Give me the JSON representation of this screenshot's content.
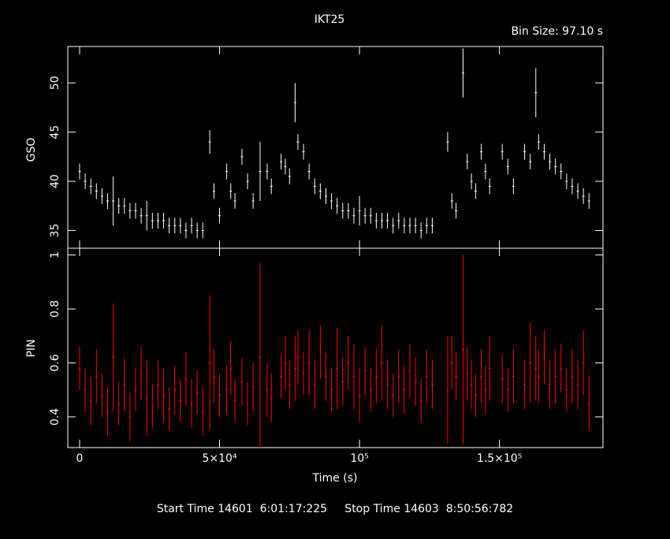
{
  "chart_data": [
    {
      "type": "scatter",
      "title": "IKT25",
      "subtitle": "Bin Size: 97.10 s",
      "ylabel": "GSO",
      "color": "#ffffff",
      "x": [
        0,
        2000,
        4000,
        6000,
        8000,
        10000,
        12000,
        14000,
        16000,
        18000,
        20000,
        22000,
        24000,
        26000,
        28000,
        30000,
        32000,
        34000,
        36000,
        38000,
        40000,
        42000,
        44000,
        46500,
        48000,
        50000,
        52500,
        54000,
        55500,
        58000,
        60000,
        62000,
        64500,
        67000,
        68500,
        72000,
        73500,
        75000,
        77000,
        78000,
        80000,
        82000,
        84000,
        86000,
        88000,
        90000,
        92000,
        94000,
        96000,
        98000,
        100000,
        102000,
        104000,
        106000,
        108000,
        110000,
        112000,
        114000,
        116000,
        118000,
        120000,
        122000,
        124000,
        126000,
        131500,
        133000,
        134500,
        137000,
        138500,
        140000,
        141500,
        143500,
        145000,
        146500,
        151000,
        153000,
        155000,
        159000,
        161000,
        163000,
        164000,
        166000,
        168000,
        170000,
        172000,
        174000,
        176000,
        178000,
        180000,
        182000
      ],
      "values": [
        41,
        40,
        39.5,
        39,
        38.5,
        38,
        38,
        37.5,
        37.5,
        37,
        37,
        36.5,
        36.5,
        36,
        36,
        36,
        35.5,
        35.5,
        35.5,
        35,
        35.5,
        35,
        35,
        44,
        39,
        36.5,
        41,
        39,
        38,
        42.5,
        40,
        38,
        41,
        41,
        39.5,
        42,
        41.5,
        40.5,
        48,
        44,
        43,
        41,
        39.5,
        39,
        38.5,
        38,
        37.5,
        37,
        37,
        36.5,
        37,
        36.5,
        36.5,
        36,
        36,
        36,
        35.5,
        36,
        35.5,
        35.5,
        35.5,
        35,
        35.5,
        35.5,
        44,
        38,
        37,
        51,
        42,
        40,
        39,
        43,
        41,
        39.5,
        43,
        41.5,
        39.5,
        43,
        42,
        49,
        44,
        43,
        42,
        41.5,
        41,
        40,
        39.5,
        39,
        38.5,
        38
      ],
      "errors": [
        0.8,
        0.8,
        0.8,
        0.8,
        0.8,
        0.8,
        2.5,
        0.8,
        0.8,
        0.8,
        0.8,
        0.8,
        1.5,
        0.8,
        0.8,
        0.8,
        0.8,
        0.8,
        0.8,
        0.8,
        0.8,
        0.8,
        0.8,
        1.2,
        0.8,
        0.8,
        0.8,
        0.8,
        0.8,
        0.8,
        0.8,
        0.8,
        3,
        0.8,
        0.8,
        0.8,
        0.8,
        0.8,
        2,
        0.8,
        0.8,
        0.8,
        0.8,
        0.8,
        0.8,
        0.8,
        0.8,
        0.8,
        0.8,
        0.8,
        1.5,
        0.8,
        0.8,
        0.8,
        0.8,
        0.8,
        0.8,
        0.8,
        0.8,
        0.8,
        0.8,
        0.8,
        0.8,
        0.8,
        1,
        0.8,
        0.8,
        2.5,
        0.8,
        0.8,
        0.8,
        0.8,
        0.8,
        0.8,
        0.8,
        0.8,
        0.8,
        0.8,
        0.8,
        2.5,
        0.8,
        0.8,
        0.8,
        0.8,
        0.8,
        0.8,
        0.8,
        0.8,
        0.8,
        0.8
      ],
      "xlim": [
        -4225,
        187000
      ],
      "ylim": [
        33.2,
        53.7
      ],
      "yticks": [
        35,
        40,
        45,
        50
      ]
    },
    {
      "type": "scatter",
      "ylabel": "PIN",
      "xlabel": "Time (s)",
      "color": "#ff0000",
      "annotation": "Start Time 14601  6:01:17:225     Stop Time 14603  8:50:56:782",
      "x": [
        0,
        2000,
        4000,
        6000,
        8000,
        10000,
        12000,
        14000,
        16000,
        18000,
        20000,
        22000,
        24000,
        26000,
        28000,
        30000,
        32000,
        34000,
        36000,
        38000,
        40000,
        42000,
        44000,
        46500,
        48000,
        50000,
        52500,
        54000,
        55500,
        58000,
        60000,
        62000,
        64500,
        67000,
        68500,
        72000,
        73500,
        75000,
        77000,
        78000,
        80000,
        82000,
        84000,
        86000,
        88000,
        90000,
        92000,
        94000,
        96000,
        98000,
        100000,
        102000,
        104000,
        106000,
        108000,
        110000,
        112000,
        114000,
        116000,
        118000,
        120000,
        122000,
        124000,
        126000,
        131500,
        133000,
        134500,
        137000,
        138500,
        140000,
        141500,
        143500,
        145000,
        146500,
        151000,
        153000,
        155000,
        159000,
        161000,
        163000,
        164000,
        166000,
        168000,
        170000,
        172000,
        174000,
        176000,
        178000,
        180000,
        182000
      ],
      "values": [
        0.58,
        0.5,
        0.46,
        0.55,
        0.48,
        0.42,
        0.62,
        0.45,
        0.52,
        0.4,
        0.5,
        0.56,
        0.47,
        0.44,
        0.52,
        0.48,
        0.43,
        0.5,
        0.46,
        0.54,
        0.45,
        0.49,
        0.42,
        0.6,
        0.55,
        0.48,
        0.5,
        0.58,
        0.46,
        0.53,
        0.45,
        0.51,
        0.62,
        0.5,
        0.47,
        0.55,
        0.6,
        0.52,
        0.58,
        0.62,
        0.56,
        0.6,
        0.52,
        0.64,
        0.55,
        0.5,
        0.58,
        0.53,
        0.6,
        0.55,
        0.48,
        0.57,
        0.5,
        0.55,
        0.6,
        0.52,
        0.48,
        0.55,
        0.5,
        0.57,
        0.53,
        0.46,
        0.55,
        0.52,
        0.5,
        0.6,
        0.55,
        0.65,
        0.56,
        0.52,
        0.48,
        0.55,
        0.5,
        0.58,
        0.54,
        0.5,
        0.55,
        0.52,
        0.6,
        0.58,
        0.55,
        0.62,
        0.52,
        0.55,
        0.58,
        0.5,
        0.55,
        0.52,
        0.6,
        0.45
      ],
      "errors": [
        0.08,
        0.08,
        0.09,
        0.1,
        0.08,
        0.09,
        0.2,
        0.08,
        0.1,
        0.09,
        0.08,
        0.1,
        0.14,
        0.08,
        0.09,
        0.1,
        0.08,
        0.09,
        0.08,
        0.1,
        0.09,
        0.08,
        0.09,
        0.25,
        0.1,
        0.08,
        0.09,
        0.1,
        0.08,
        0.09,
        0.08,
        0.09,
        0.35,
        0.1,
        0.09,
        0.08,
        0.1,
        0.09,
        0.12,
        0.1,
        0.08,
        0.12,
        0.09,
        0.1,
        0.09,
        0.08,
        0.15,
        0.09,
        0.1,
        0.12,
        0.1,
        0.09,
        0.08,
        0.1,
        0.14,
        0.09,
        0.08,
        0.1,
        0.09,
        0.1,
        0.09,
        0.08,
        0.1,
        0.09,
        0.2,
        0.1,
        0.09,
        0.35,
        0.1,
        0.09,
        0.08,
        0.1,
        0.09,
        0.12,
        0.09,
        0.08,
        0.1,
        0.09,
        0.15,
        0.12,
        0.1,
        0.1,
        0.09,
        0.1,
        0.09,
        0.08,
        0.1,
        0.09,
        0.12,
        0.1
      ],
      "xlim": [
        -4225,
        187000
      ],
      "ylim": [
        0.286,
        1.025
      ],
      "yticks": [
        0.4,
        0.6,
        {
          "value": 0.8,
          "label": "0.8"
        },
        1
      ],
      "xticks": [
        0,
        {
          "value": 50000,
          "label": "5×10⁴"
        },
        {
          "value": 100000,
          "label": "10⁵"
        },
        {
          "value": 150000,
          "label": "1.5×10⁵"
        }
      ]
    }
  ]
}
